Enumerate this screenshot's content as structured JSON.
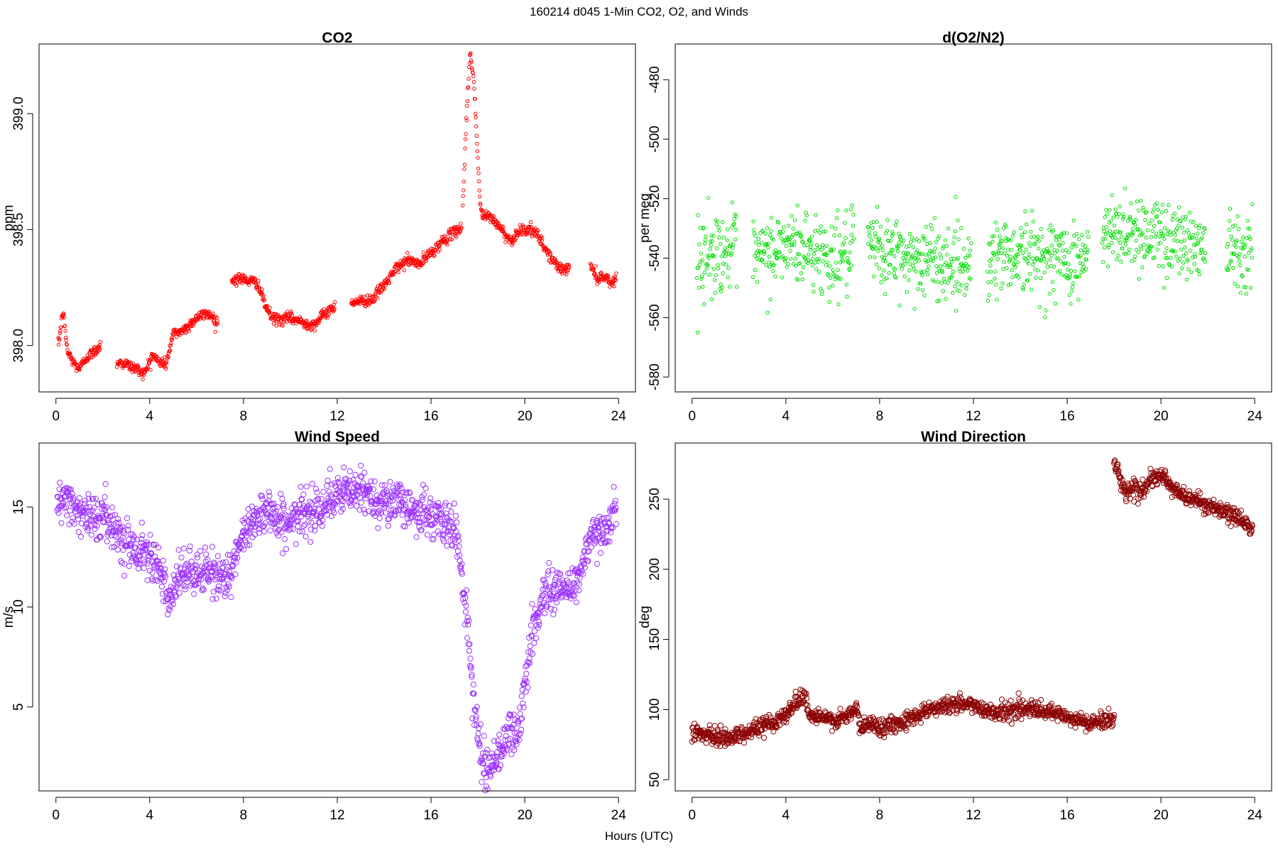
{
  "figure": {
    "suptitle": "160214   d045   1-Min CO2, O2, and Winds",
    "xlabel": "Hours (UTC)"
  },
  "chart_data": [
    {
      "type": "scatter",
      "title": "CO2",
      "xlabel": "",
      "ylabel": "ppm",
      "xlim": [
        0,
        24
      ],
      "ylim": [
        397.8,
        399.3
      ],
      "xticks": [
        0,
        4,
        8,
        12,
        16,
        20,
        24
      ],
      "yticks": [
        398.0,
        398.5,
        399.0
      ],
      "ytick_labels": [
        "398.0",
        "398.5",
        "399.0"
      ],
      "color": "#ff0000",
      "marker_radius": 2.2,
      "noise": 0.012,
      "density": 60,
      "series": [
        {
          "x": [
            0.1,
            0.3,
            0.5,
            0.8,
            1.0,
            1.3,
            1.6,
            1.9
          ],
          "y": [
            398.0,
            398.15,
            397.97,
            397.92,
            397.9,
            397.95,
            397.97,
            398.0
          ]
        },
        {
          "x": [
            2.6,
            3.0,
            3.4,
            3.8,
            4.1,
            4.4,
            4.7,
            5.0,
            5.5,
            6.0,
            6.5,
            6.9
          ],
          "y": [
            397.93,
            397.92,
            397.9,
            397.88,
            397.96,
            397.93,
            397.92,
            398.05,
            398.07,
            398.12,
            398.14,
            398.1
          ]
        },
        {
          "x": [
            7.5,
            7.8,
            8.2,
            8.6,
            8.9,
            9.2,
            9.6,
            10.0,
            10.5,
            11.0,
            11.5,
            11.9
          ],
          "y": [
            398.28,
            398.29,
            398.28,
            398.27,
            398.18,
            398.12,
            398.11,
            398.12,
            398.1,
            398.09,
            398.14,
            398.17
          ]
        },
        {
          "x": [
            12.6,
            13.0,
            13.5,
            14.0,
            14.5,
            15.0,
            15.5,
            16.0,
            16.5,
            17.0,
            17.3
          ],
          "y": [
            398.19,
            398.19,
            398.2,
            398.26,
            398.33,
            398.37,
            398.35,
            398.4,
            398.45,
            398.49,
            398.51
          ]
        },
        {
          "x": [
            17.35,
            17.5,
            17.6,
            17.65,
            17.7,
            17.75,
            17.8,
            17.9,
            18.0,
            18.05,
            18.1,
            18.2
          ],
          "y": [
            398.6,
            398.95,
            399.15,
            399.25,
            399.25,
            399.2,
            399.18,
            399.0,
            398.8,
            398.7,
            398.6,
            398.56
          ]
        },
        {
          "x": [
            18.2,
            18.6,
            19.0,
            19.4,
            19.8,
            20.2,
            20.5,
            20.8,
            21.1,
            21.5,
            21.9
          ],
          "y": [
            398.56,
            398.55,
            398.5,
            398.45,
            398.5,
            398.5,
            398.48,
            398.43,
            398.38,
            398.33,
            398.33
          ]
        },
        {
          "x": [
            22.8,
            23.1,
            23.4,
            23.7,
            23.9
          ],
          "y": [
            398.35,
            398.29,
            398.3,
            398.27,
            398.29
          ]
        }
      ]
    },
    {
      "type": "scatter",
      "title": "d(O2/N2)",
      "xlabel": "",
      "ylabel": "per meg",
      "xlim": [
        0,
        24
      ],
      "ylim": [
        -585,
        -468
      ],
      "xticks": [
        0,
        4,
        8,
        12,
        16,
        20,
        24
      ],
      "yticks": [
        -580,
        -560,
        -540,
        -520,
        -500,
        -480
      ],
      "ytick_labels": [
        "-580",
        "-560",
        "-540",
        "-520",
        "-500",
        "-480"
      ],
      "color": "#00dd00",
      "marker_radius": 2.2,
      "noise": 6.5,
      "density": 55,
      "series": [
        {
          "x": [
            0.2,
            1.0,
            1.9
          ],
          "y": [
            -540,
            -538,
            -537
          ]
        },
        {
          "x": [
            2.6,
            4.0,
            5.0,
            6.0,
            6.9
          ],
          "y": [
            -541,
            -536,
            -537,
            -540,
            -538
          ]
        },
        {
          "x": [
            7.5,
            8.5,
            9.5,
            10.5,
            11.5,
            11.9
          ],
          "y": [
            -536,
            -539,
            -540,
            -541,
            -542,
            -542
          ]
        },
        {
          "x": [
            12.6,
            13.5,
            14.5,
            15.5,
            16.5,
            16.9
          ],
          "y": [
            -540,
            -538,
            -539,
            -540,
            -541,
            -540
          ]
        },
        {
          "x": [
            17.5,
            18.5,
            19.5,
            20.5,
            21.5,
            21.9
          ],
          "y": [
            -533,
            -530,
            -532,
            -533,
            -536,
            -534
          ]
        },
        {
          "x": [
            22.8,
            23.4,
            23.9
          ],
          "y": [
            -533,
            -537,
            -536
          ]
        }
      ]
    },
    {
      "type": "scatter",
      "title": "Wind Speed",
      "xlabel": "",
      "ylabel": "m/s",
      "xlim": [
        0,
        24
      ],
      "ylim": [
        0.8,
        18.2
      ],
      "xticks": [
        0,
        4,
        8,
        12,
        16,
        20,
        24
      ],
      "yticks": [
        5,
        10,
        15
      ],
      "ytick_labels": [
        "5",
        "10",
        "15"
      ],
      "color": "#9b30ff",
      "marker_radius": 3.6,
      "noise": 0.55,
      "density": 60,
      "series": [
        {
          "x": [
            0.05,
            0.5,
            1.0,
            1.5,
            2.0,
            2.5,
            3.0,
            3.5,
            4.0,
            4.3,
            4.6,
            4.9,
            5.2,
            5.6,
            6.0,
            6.5,
            7.0,
            7.5,
            8.0,
            8.5,
            9.0,
            9.5,
            10.0,
            10.5,
            11.0,
            11.5,
            12.0,
            12.5,
            13.0,
            13.5,
            14.0,
            14.5,
            15.0,
            15.5,
            16.0,
            16.5,
            17.0,
            17.3,
            17.6,
            17.8,
            18.0,
            18.2,
            18.5,
            18.8,
            19.1,
            19.4,
            19.7,
            20.0,
            20.3,
            20.6,
            21.0,
            21.5,
            22.0,
            22.3,
            22.6,
            23.0,
            23.5,
            23.9
          ],
          "y": [
            15.0,
            15.5,
            14.8,
            14.5,
            14.5,
            14.0,
            13.2,
            12.8,
            12.8,
            12.5,
            11.0,
            10.0,
            11.5,
            11.8,
            11.7,
            11.7,
            11.5,
            11.8,
            13.5,
            14.5,
            15.0,
            14.3,
            14.2,
            14.6,
            15.0,
            15.2,
            15.5,
            15.8,
            15.7,
            15.5,
            15.3,
            15.2,
            15.0,
            14.8,
            14.5,
            14.2,
            14.0,
            12.0,
            8.5,
            5.5,
            3.5,
            2.2,
            2.0,
            2.5,
            3.2,
            3.8,
            3.5,
            6.0,
            8.5,
            10.0,
            11.0,
            10.8,
            11.0,
            11.5,
            12.8,
            13.5,
            14.2,
            14.8
          ]
        }
      ]
    },
    {
      "type": "scatter",
      "title": "Wind Direction",
      "xlabel": "",
      "ylabel": "deg",
      "xlim": [
        0,
        24
      ],
      "ylim": [
        42,
        290
      ],
      "xticks": [
        0,
        4,
        8,
        12,
        16,
        20,
        24
      ],
      "yticks": [
        50,
        100,
        150,
        200,
        250
      ],
      "ytick_labels": [
        "50",
        "100",
        "150",
        "200",
        "250"
      ],
      "color": "#8b0000",
      "marker_radius": 3.6,
      "noise": 3.0,
      "density": 60,
      "series": [
        {
          "x": [
            0.0,
            0.5,
            1.0,
            1.5,
            2.0,
            2.5,
            3.0,
            3.5,
            4.0,
            4.4,
            4.8,
            5.0,
            5.3,
            5.8,
            6.3,
            6.8,
            7.0,
            7.2,
            7.5,
            8.0,
            8.5,
            9.0,
            9.5,
            10.0,
            10.5,
            11.0,
            11.5,
            12.0,
            12.5,
            13.0,
            13.5,
            14.0,
            14.5,
            15.0,
            15.5,
            16.0,
            16.5,
            17.0,
            17.5,
            18.0
          ],
          "y": [
            85,
            82,
            80,
            80,
            82,
            85,
            88,
            92,
            96,
            105,
            112,
            95,
            95,
            93,
            92,
            97,
            102,
            85,
            90,
            88,
            89,
            92,
            95,
            100,
            102,
            103,
            104,
            103,
            100,
            98,
            99,
            101,
            100,
            98,
            97,
            94,
            92,
            90,
            92,
            94
          ]
        },
        {
          "x": [
            18.0,
            18.2,
            18.5,
            18.8,
            19.1,
            19.5,
            19.8,
            20.1,
            20.4,
            20.7,
            21.0,
            21.5,
            22.0,
            22.5,
            23.0,
            23.5,
            23.9
          ],
          "y": [
            275,
            268,
            255,
            258,
            255,
            262,
            265,
            266,
            260,
            255,
            252,
            250,
            245,
            242,
            238,
            235,
            230
          ]
        }
      ]
    }
  ]
}
